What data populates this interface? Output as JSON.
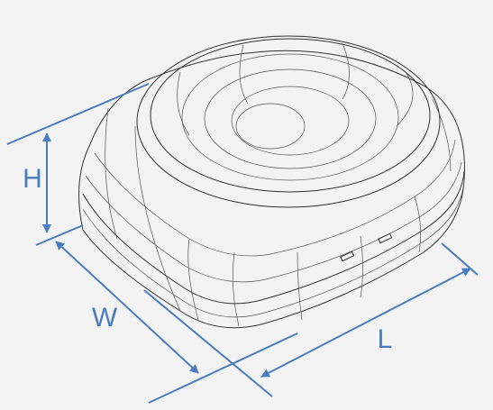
{
  "dimension_labels": {
    "height": "H",
    "width": "W",
    "length": "L"
  }
}
